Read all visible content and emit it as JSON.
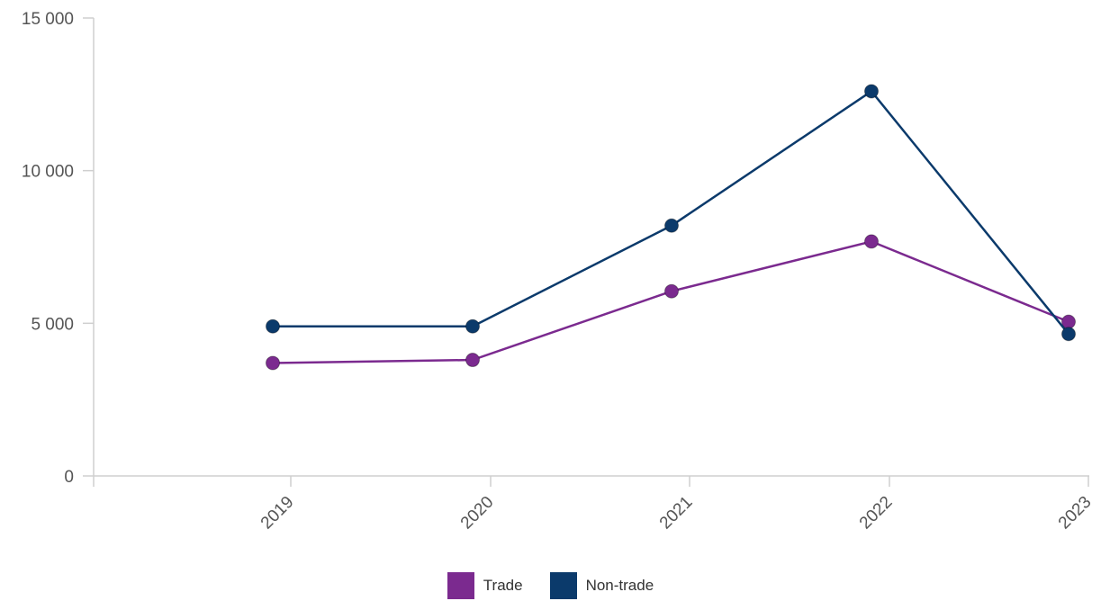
{
  "chart_data": {
    "type": "line",
    "categories": [
      "2019",
      "2020",
      "2021",
      "2022",
      "2023"
    ],
    "series": [
      {
        "name": "Trade",
        "values": [
          3700,
          3800,
          6050,
          7680,
          5050
        ],
        "color": "#7b2a8f"
      },
      {
        "name": "Non-trade",
        "values": [
          4900,
          4900,
          8200,
          12600,
          4650
        ],
        "color": "#0b3a6b"
      }
    ],
    "ylim": [
      0,
      15000
    ],
    "yticks": [
      {
        "value": 0,
        "label": "0"
      },
      {
        "value": 5000,
        "label": "5 000"
      },
      {
        "value": 10000,
        "label": "10 000"
      },
      {
        "value": 15000,
        "label": "15 000"
      }
    ],
    "title": "",
    "xlabel": "",
    "ylabel": "",
    "legend_position": "bottom-center",
    "grid": false
  }
}
